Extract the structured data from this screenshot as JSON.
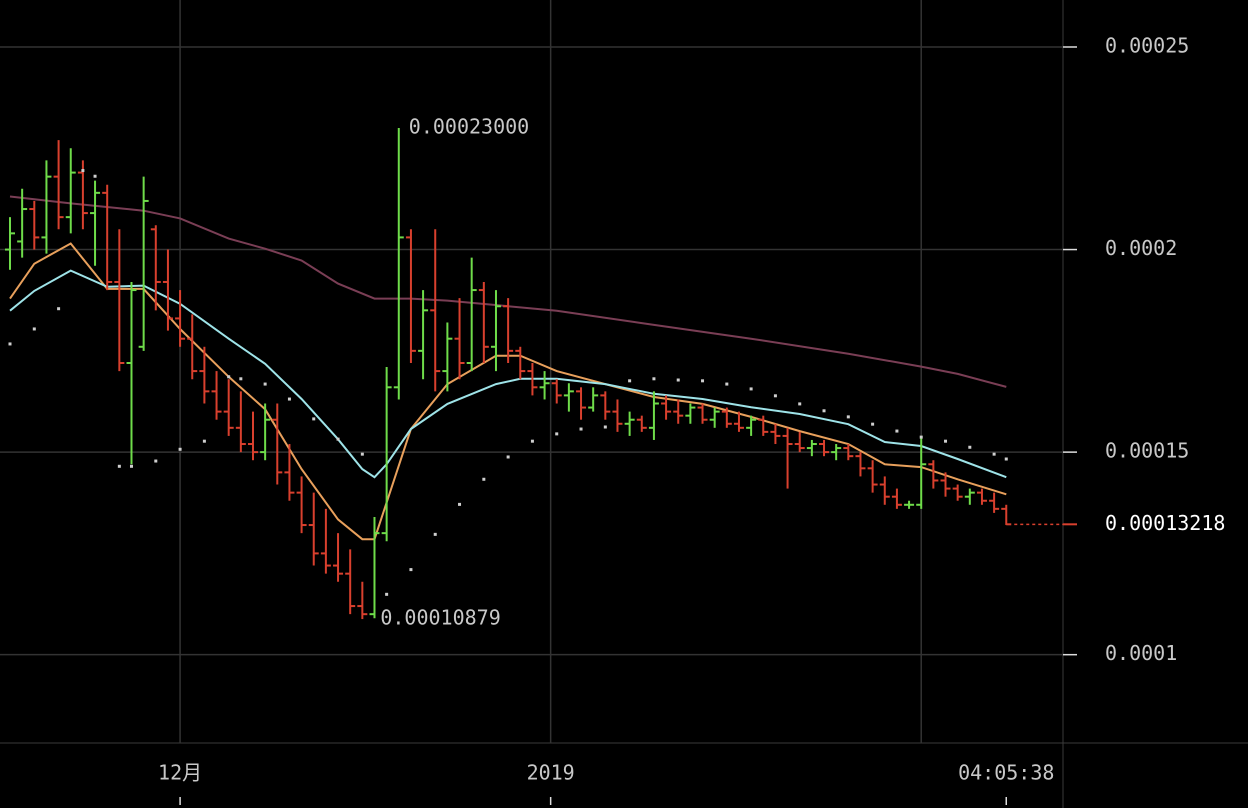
{
  "chart_data": {
    "type": "ohlc",
    "xlim": [
      -0.823,
      86.67
    ],
    "ylim": [
      7.82e-05,
      0.0002616
    ],
    "yticks": [
      0.0001,
      0.00015,
      0.0002,
      0.00025
    ],
    "xticks": [
      {
        "value": 14,
        "label": "12月"
      },
      {
        "value": 44.5,
        "label": "2019"
      },
      {
        "value": 82,
        "label": "04:05:38"
      }
    ],
    "xgrid": [
      14,
      44.5,
      75
    ],
    "grid": true,
    "up_color": "#6fdc4a",
    "down_color": "#d9402e",
    "ohlc": [
      [
        0.0002,
        0.000208,
        0.000195,
        0.000204
      ],
      [
        0.000202,
        0.000215,
        0.000198,
        0.00021
      ],
      [
        0.00021,
        0.000212,
        0.0002,
        0.000203
      ],
      [
        0.000203,
        0.000222,
        0.000199,
        0.000218
      ],
      [
        0.000218,
        0.000227,
        0.000205,
        0.000208
      ],
      [
        0.000208,
        0.000225,
        0.000204,
        0.000219
      ],
      [
        0.000219,
        0.000222,
        0.000205,
        0.000209
      ],
      [
        0.000209,
        0.000217,
        0.000196,
        0.000214
      ],
      [
        0.000214,
        0.000216,
        0.00019,
        0.000192
      ],
      [
        0.000192,
        0.000205,
        0.00017,
        0.000172
      ],
      [
        0.000172,
        0.000192,
        0.000147,
        0.00019
      ],
      [
        0.000176,
        0.000218,
        0.000175,
        0.000212
      ],
      [
        0.000205,
        0.000206,
        0.000185,
        0.000192
      ],
      [
        0.000192,
        0.0002,
        0.00018,
        0.000183
      ],
      [
        0.000183,
        0.00019,
        0.000176,
        0.000178
      ],
      [
        0.000178,
        0.000184,
        0.000168,
        0.00017
      ],
      [
        0.00017,
        0.000176,
        0.000162,
        0.000165
      ],
      [
        0.000165,
        0.00017,
        0.000158,
        0.00016
      ],
      [
        0.00016,
        0.000168,
        0.000154,
        0.000156
      ],
      [
        0.000156,
        0.000165,
        0.00015,
        0.000152
      ],
      [
        0.000152,
        0.00016,
        0.000148,
        0.00015
      ],
      [
        0.00015,
        0.000162,
        0.000148,
        0.000158
      ],
      [
        0.000158,
        0.000162,
        0.000142,
        0.000145
      ],
      [
        0.000145,
        0.000152,
        0.000138,
        0.00014
      ],
      [
        0.00014,
        0.000144,
        0.00013,
        0.000132
      ],
      [
        0.000132,
        0.00014,
        0.000122,
        0.000125
      ],
      [
        0.000125,
        0.000136,
        0.00012,
        0.000122
      ],
      [
        0.000122,
        0.00013,
        0.000118,
        0.00012
      ],
      [
        0.00012,
        0.000126,
        0.00011,
        0.000112
      ],
      [
        0.000112,
        0.000118,
        0.00010879,
        0.00011
      ],
      [
        0.00011,
        0.000134,
        0.000109,
        0.00013
      ],
      [
        0.00013,
        0.000171,
        0.000128,
        0.000166
      ],
      [
        0.000166,
        0.00023,
        0.000163,
        0.000203
      ],
      [
        0.000203,
        0.000205,
        0.000172,
        0.000175
      ],
      [
        0.000175,
        0.00019,
        0.000168,
        0.000185
      ],
      [
        0.000185,
        0.000205,
        0.000165,
        0.00017
      ],
      [
        0.00017,
        0.000182,
        0.000165,
        0.000178
      ],
      [
        0.000178,
        0.000188,
        0.000168,
        0.000172
      ],
      [
        0.000172,
        0.000198,
        0.00017,
        0.00019
      ],
      [
        0.00019,
        0.000192,
        0.000172,
        0.000176
      ],
      [
        0.000176,
        0.00019,
        0.00017,
        0.000186
      ],
      [
        0.000186,
        0.000188,
        0.000172,
        0.000175
      ],
      [
        0.000175,
        0.000176,
        0.000168,
        0.00017
      ],
      [
        0.00017,
        0.000172,
        0.000164,
        0.000166
      ],
      [
        0.000166,
        0.00017,
        0.000163,
        0.000167
      ],
      [
        0.000167,
        0.000168,
        0.000162,
        0.000164
      ],
      [
        0.000164,
        0.000167,
        0.00016,
        0.000165
      ],
      [
        0.000165,
        0.000166,
        0.000158,
        0.000161
      ],
      [
        0.000161,
        0.000166,
        0.00016,
        0.000164
      ],
      [
        0.000164,
        0.000165,
        0.000158,
        0.00016
      ],
      [
        0.00016,
        0.000163,
        0.000155,
        0.000157
      ],
      [
        0.000157,
        0.00016,
        0.000154,
        0.000158
      ],
      [
        0.000158,
        0.000159,
        0.000155,
        0.000156
      ],
      [
        0.000156,
        0.000165,
        0.000153,
        0.000162
      ],
      [
        0.000162,
        0.000164,
        0.000158,
        0.00016
      ],
      [
        0.00016,
        0.000163,
        0.000157,
        0.000159
      ],
      [
        0.000159,
        0.000162,
        0.000157,
        0.000161
      ],
      [
        0.000161,
        0.000162,
        0.000157,
        0.000158
      ],
      [
        0.000158,
        0.000161,
        0.000156,
        0.00016
      ],
      [
        0.00016,
        0.000161,
        0.000156,
        0.000157
      ],
      [
        0.000157,
        0.00016,
        0.000155,
        0.000156
      ],
      [
        0.000156,
        0.000159,
        0.000154,
        0.000158
      ],
      [
        0.000158,
        0.000159,
        0.000154,
        0.000155
      ],
      [
        0.000155,
        0.000157,
        0.000152,
        0.000154
      ],
      [
        0.000154,
        0.000156,
        0.000141,
        0.000152
      ],
      [
        0.000152,
        0.000155,
        0.00015,
        0.000151
      ],
      [
        0.000151,
        0.000153,
        0.000149,
        0.000152
      ],
      [
        0.000152,
        0.000153,
        0.000149,
        0.00015
      ],
      [
        0.00015,
        0.000152,
        0.000148,
        0.000151
      ],
      [
        0.000151,
        0.000152,
        0.000148,
        0.000149
      ],
      [
        0.000149,
        0.00015,
        0.000144,
        0.000146
      ],
      [
        0.000146,
        0.000148,
        0.00014,
        0.000142
      ],
      [
        0.000142,
        0.000144,
        0.000137,
        0.000139
      ],
      [
        0.000139,
        0.000141,
        0.000136,
        0.000137
      ],
      [
        0.000137,
        0.000138,
        0.000136,
        0.000137
      ],
      [
        0.000137,
        0.000154,
        0.000136,
        0.000147
      ],
      [
        0.000147,
        0.000148,
        0.000141,
        0.000143
      ],
      [
        0.000143,
        0.000145,
        0.000139,
        0.000141
      ],
      [
        0.000141,
        0.000142,
        0.000138,
        0.000139
      ],
      [
        0.000139,
        0.000141,
        0.000137,
        0.00014
      ],
      [
        0.00014,
        0.000141,
        0.000137,
        0.000138
      ],
      [
        0.000138,
        0.00014,
        0.000135,
        0.000136
      ],
      [
        0.000136,
        0.000137,
        0.000132,
        0.00013218
      ]
    ],
    "lines": [
      {
        "color": "#e8a05c",
        "x": [
          0,
          2,
          5,
          8,
          11,
          14,
          18,
          21,
          24,
          27,
          29,
          30,
          33,
          36,
          40,
          42,
          45,
          49,
          53,
          57,
          61,
          65,
          69,
          72,
          75,
          78,
          82
        ],
        "values": [
          0.0001879,
          0.0001965,
          0.0002015,
          0.0001903,
          0.0001903,
          0.0001804,
          0.0001686,
          0.0001606,
          0.0001458,
          0.0001334,
          0.0001285,
          0.0001285,
          0.0001557,
          0.0001668,
          0.0001738,
          0.0001738,
          0.00017,
          0.0001668,
          0.0001636,
          0.0001619,
          0.0001587,
          0.0001552,
          0.000152,
          0.000147,
          0.0001463,
          0.0001433,
          0.0001396
        ]
      },
      {
        "color": "#9ee3e8",
        "x": [
          0,
          2,
          5,
          8,
          11,
          14,
          18,
          21,
          24,
          27,
          29,
          30,
          31,
          33,
          36,
          40,
          42,
          45,
          49,
          53,
          57,
          61,
          65,
          69,
          72,
          75,
          78,
          82
        ],
        "values": [
          0.0001849,
          0.0001898,
          0.0001948,
          0.0001908,
          0.0001911,
          0.0001866,
          0.000178,
          0.0001718,
          0.0001631,
          0.0001532,
          0.0001458,
          0.0001438,
          0.000147,
          0.0001557,
          0.0001619,
          0.0001668,
          0.0001681,
          0.0001681,
          0.0001668,
          0.0001644,
          0.0001631,
          0.0001611,
          0.0001594,
          0.0001569,
          0.0001525,
          0.0001515,
          0.0001483,
          0.0001438
        ]
      },
      {
        "color": "#7a3e55",
        "x": [
          0,
          5,
          11,
          14,
          18,
          21,
          24,
          27,
          30,
          33,
          36,
          45,
          53,
          61,
          69,
          75,
          78,
          82
        ],
        "values": [
          0.0002131,
          0.0002114,
          0.0002096,
          0.0002077,
          0.0002027,
          0.0002002,
          0.0001973,
          0.0001916,
          0.0001879,
          0.0001879,
          0.0001874,
          0.0001849,
          0.0001814,
          0.000178,
          0.0001743,
          0.0001711,
          0.0001693,
          0.0001661
        ]
      }
    ],
    "dots": {
      "color": "#cfcfcf",
      "x": [
        0,
        2,
        4,
        6,
        7,
        9,
        10,
        12,
        14,
        16,
        18,
        19,
        21,
        23,
        25,
        27,
        29,
        31,
        33,
        35,
        37,
        39,
        41,
        43,
        45,
        47,
        49,
        51,
        53,
        55,
        57,
        59,
        61,
        63,
        65,
        67,
        69,
        71,
        73,
        75,
        77,
        79,
        81,
        82
      ],
      "values": [
        0.0001767,
        0.0001804,
        0.0001854,
        0.0002195,
        0.0002181,
        0.0001465,
        0.0001465,
        0.0001478,
        0.0001507,
        0.0001527,
        0.0001686,
        0.0001681,
        0.0001668,
        0.0001631,
        0.0001582,
        0.0001532,
        0.0001495,
        0.0001149,
        0.000121,
        0.0001297,
        0.0001371,
        0.0001433,
        0.0001488,
        0.0001527,
        0.0001545,
        0.0001557,
        0.0001562,
        0.0001676,
        0.0001681,
        0.0001678,
        0.0001676,
        0.0001668,
        0.0001656,
        0.0001639,
        0.0001619,
        0.0001602,
        0.0001587,
        0.0001569,
        0.0001552,
        0.0001537,
        0.0001527,
        0.0001512,
        0.0001495,
        0.0001483
      ]
    },
    "annotations": [
      {
        "x": 32,
        "field": 1,
        "label": "0.00023000"
      },
      {
        "x": 29,
        "field": 2,
        "label": "0.00010879"
      }
    ]
  }
}
